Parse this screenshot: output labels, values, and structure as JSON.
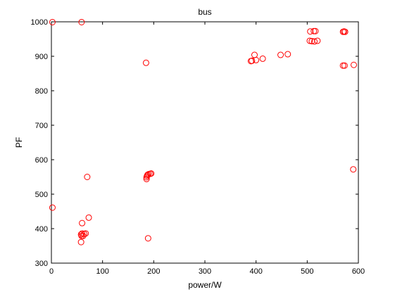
{
  "chart_data": {
    "type": "scatter",
    "title": "bus",
    "xlabel": "power/W",
    "ylabel": "PF",
    "xlim": [
      0,
      600
    ],
    "ylim": [
      300,
      1000
    ],
    "xticks": [
      0,
      100,
      200,
      300,
      400,
      500,
      600
    ],
    "yticks": [
      300,
      400,
      500,
      600,
      700,
      800,
      900,
      1000
    ],
    "grid": false,
    "marker": "open-circle",
    "marker_color": "#ff0000",
    "series": [
      {
        "points": [
          [
            2,
            999
          ],
          [
            59,
            999
          ],
          [
            185,
            881
          ],
          [
            2,
            461
          ],
          [
            70,
            550
          ],
          [
            73,
            432
          ],
          [
            60,
            416
          ],
          [
            60,
            386
          ],
          [
            64,
            385
          ],
          [
            67,
            386
          ],
          [
            58,
            383
          ],
          [
            59,
            379
          ],
          [
            62,
            379
          ],
          [
            58,
            361
          ],
          [
            189,
            372
          ],
          [
            186,
            544
          ],
          [
            186,
            549
          ],
          [
            187,
            553
          ],
          [
            188,
            556
          ],
          [
            190,
            558
          ],
          [
            193,
            559
          ],
          [
            195,
            560
          ],
          [
            390,
            886
          ],
          [
            392,
            887
          ],
          [
            397,
            904
          ],
          [
            400,
            889
          ],
          [
            413,
            893
          ],
          [
            448,
            904
          ],
          [
            462,
            906
          ],
          [
            506,
            972
          ],
          [
            513,
            973
          ],
          [
            516,
            973
          ],
          [
            505,
            945
          ],
          [
            509,
            944
          ],
          [
            514,
            943
          ],
          [
            520,
            945
          ],
          [
            570,
            971
          ],
          [
            572,
            972
          ],
          [
            574,
            971
          ],
          [
            570,
            873
          ],
          [
            573,
            873
          ],
          [
            591,
            875
          ],
          [
            590,
            572
          ]
        ]
      }
    ]
  }
}
